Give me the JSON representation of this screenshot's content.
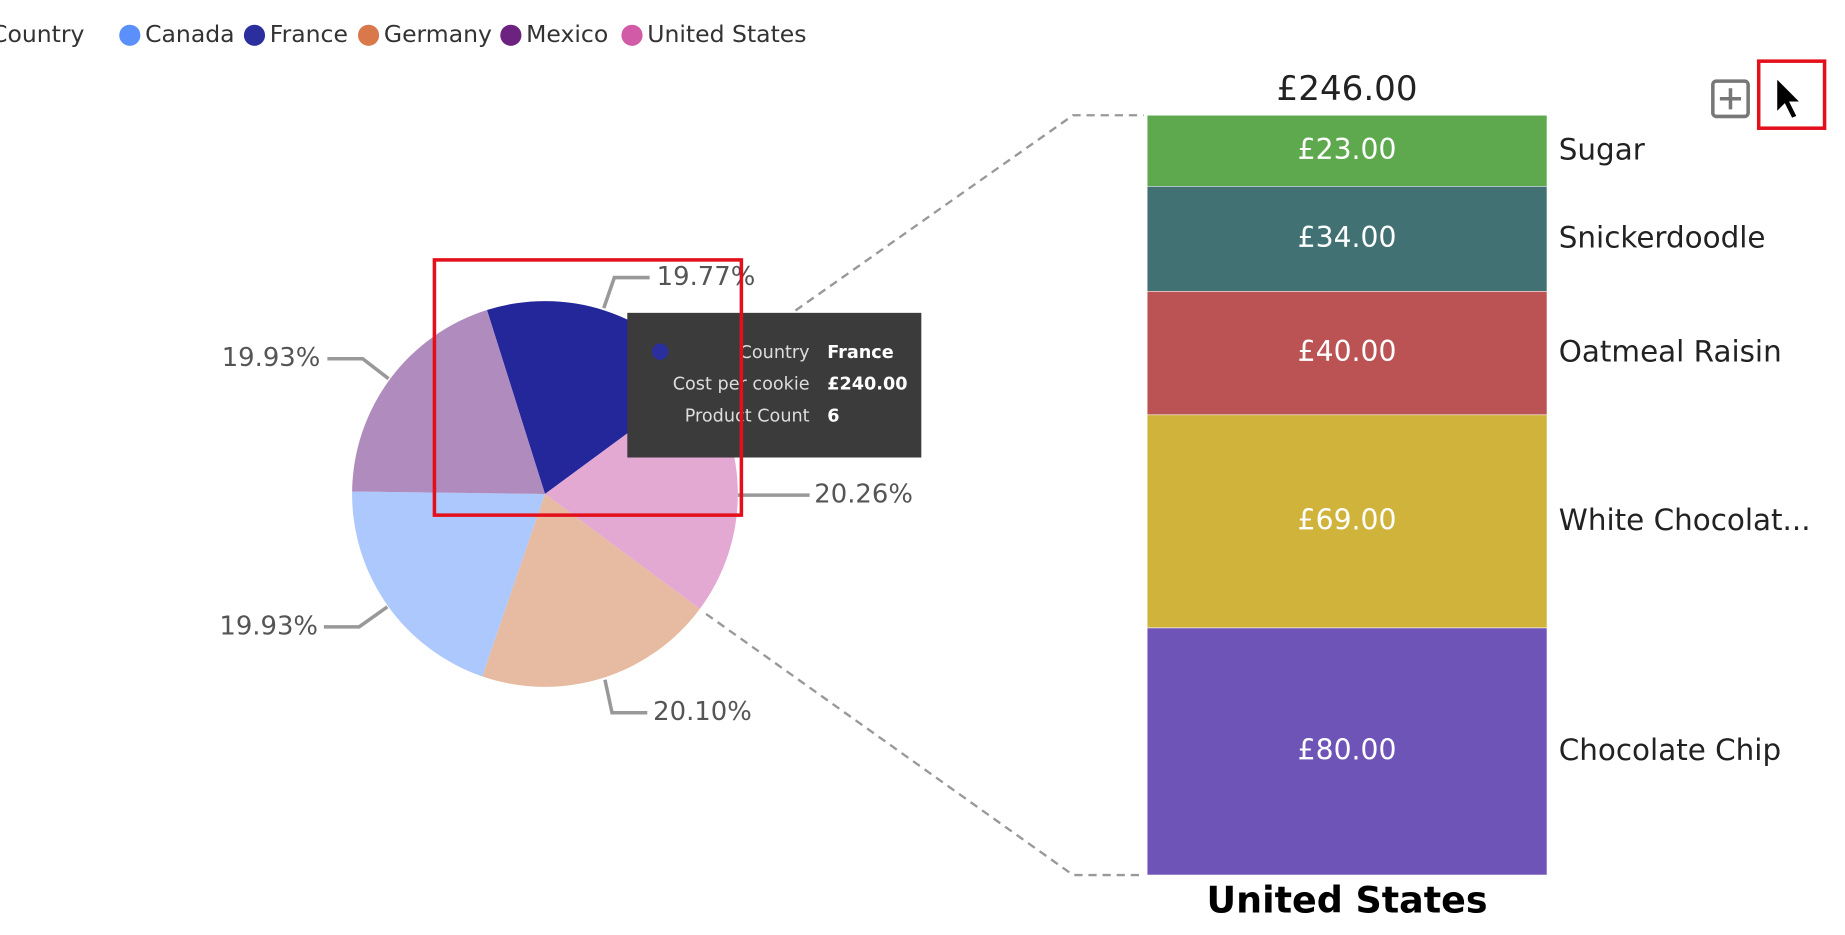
{
  "legend": {
    "title": "Country",
    "items": [
      {
        "name": "Canada",
        "color": "#5b8ff9"
      },
      {
        "name": "France",
        "color": "#2b2f9e"
      },
      {
        "name": "Germany",
        "color": "#d9784a"
      },
      {
        "name": "Mexico",
        "color": "#6b237f"
      },
      {
        "name": "United States",
        "color": "#d25ba8"
      }
    ]
  },
  "chart_data": [
    {
      "type": "pie",
      "categories": [
        "France",
        "United States",
        "Germany",
        "Canada",
        "Mexico"
      ],
      "values": [
        19.77,
        20.26,
        20.1,
        19.93,
        19.93
      ],
      "value_labels": [
        "19.77%",
        "20.26%",
        "20.10%",
        "19.93%",
        "19.93%"
      ],
      "colors": [
        "#24279a",
        "#e3a9d3",
        "#e6bba2",
        "#adc8fc",
        "#b08bbd"
      ]
    },
    {
      "type": "stacked-bar",
      "x_label": "United States",
      "total": {
        "value": 246,
        "label": "£246.00"
      },
      "categories": [
        "Sugar",
        "Snickerdoodle",
        "Oatmeal Raisin",
        "White Chocolat...",
        "Chocolate Chip"
      ],
      "values": [
        23,
        34,
        40,
        69,
        80
      ],
      "value_labels": [
        "£23.00",
        "£34.00",
        "£40.00",
        "£69.00",
        "£80.00"
      ],
      "colors": [
        "#5ea94e",
        "#417173",
        "#bb5354",
        "#cfb33b",
        "#6f54b8"
      ]
    }
  ],
  "tooltip": {
    "rows": [
      [
        "Country",
        "France"
      ],
      [
        "Cost per cookie",
        "£240.00"
      ],
      [
        "Product Count",
        "6"
      ]
    ]
  }
}
